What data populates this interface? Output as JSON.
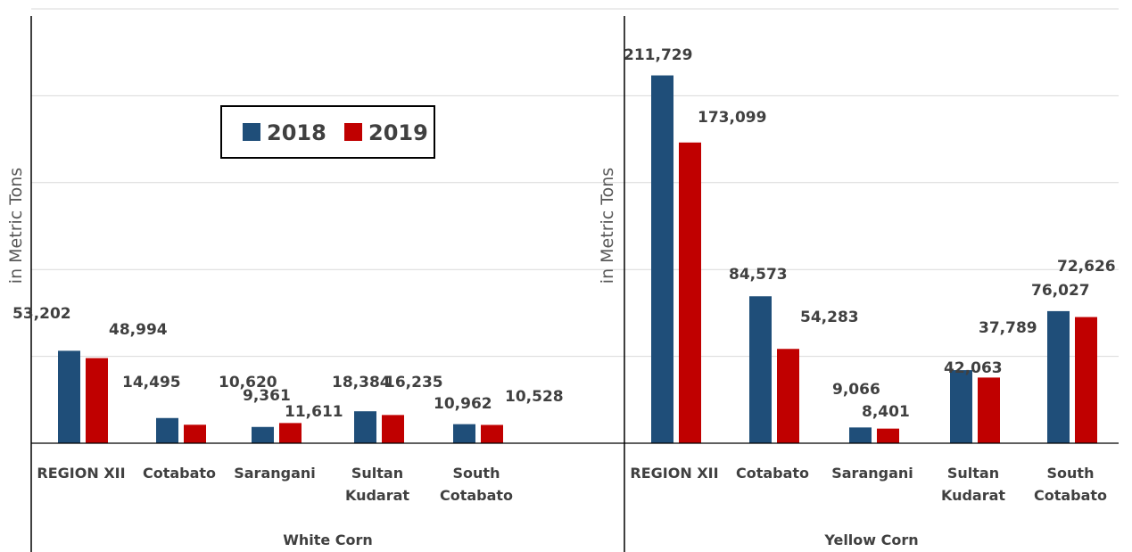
{
  "chart_data": {
    "type": "bar",
    "ylabel": "in Metric Tons",
    "grid": true,
    "legend_placement": "top-left",
    "series": [
      {
        "name": "2018",
        "color": "#1F4E79"
      },
      {
        "name": "2019",
        "color": "#C00000"
      }
    ],
    "panels": [
      {
        "group": "White Corn",
        "ylabel": "in Metric Tons",
        "ylim": [
          0,
          250000
        ],
        "categories": [
          [
            "REGION XII"
          ],
          [
            "Cotabato"
          ],
          [
            "Sarangani"
          ],
          [
            "Sultan",
            "Kudarat"
          ],
          [
            "South",
            "Cotabato"
          ]
        ],
        "values_2018": [
          53202,
          14495,
          9361,
          18384,
          10962
        ],
        "values_2019": [
          48994,
          10620,
          11611,
          16235,
          10528
        ],
        "labels_2018": [
          "53,202",
          "14,495",
          "9,361",
          "18,384",
          "10,962"
        ],
        "labels_2019": [
          "48,994",
          "10,620",
          "11,611",
          "16,235",
          "10,528"
        ]
      },
      {
        "group": "Yellow Corn",
        "ylabel": "in Metric Tons",
        "ylim": [
          0,
          250000
        ],
        "categories": [
          [
            "REGION XII"
          ],
          [
            "Cotabato"
          ],
          [
            "Sarangani"
          ],
          [
            "Sultan",
            "Kudarat"
          ],
          [
            "South",
            "Cotabato"
          ]
        ],
        "values_2018": [
          211729,
          84573,
          9066,
          42063,
          76027
        ],
        "values_2019": [
          173099,
          54283,
          8401,
          37789,
          72626
        ],
        "labels_2018": [
          "211,729",
          "84,573",
          "9,066",
          "42,063",
          "76,027"
        ],
        "labels_2019": [
          "173,099",
          "54,283",
          "8,401",
          "37,789",
          "72,626"
        ]
      }
    ]
  }
}
